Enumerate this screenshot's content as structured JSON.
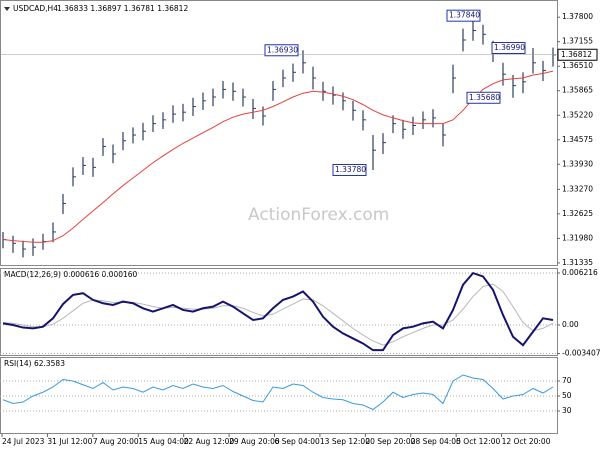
{
  "chart_data": [
    {
      "type": "ohlc",
      "title": "USDCAD,H4",
      "quote": "1.36833 1.36897 1.36781 1.36812",
      "color": "#2f3d5c",
      "high": [
        1.3215,
        1.3205,
        1.3192,
        1.3198,
        1.321,
        1.324,
        1.3315,
        1.3385,
        1.3412,
        1.341,
        1.3462,
        1.3445,
        1.3478,
        1.349,
        1.3502,
        1.3522,
        1.353,
        1.3548,
        1.3552,
        1.3568,
        1.3582,
        1.3592,
        1.3612,
        1.3608,
        1.3592,
        1.3565,
        1.3545,
        1.3612,
        1.3642,
        1.3658,
        1.3693,
        1.365,
        1.361,
        1.3598,
        1.3582,
        1.356,
        1.3535,
        1.347,
        1.3475,
        1.3522,
        1.351,
        1.3518,
        1.3532,
        1.3538,
        1.35,
        1.3655,
        1.375,
        1.3784,
        1.376,
        1.3718,
        1.366,
        1.3628,
        1.3635,
        1.3699,
        1.3665,
        1.37
      ],
      "low": [
        1.3172,
        1.316,
        1.3148,
        1.3152,
        1.3168,
        1.3188,
        1.3262,
        1.3335,
        1.3365,
        1.336,
        1.3415,
        1.3396,
        1.343,
        1.3448,
        1.3456,
        1.3478,
        1.3486,
        1.3502,
        1.3506,
        1.352,
        1.3536,
        1.3546,
        1.3566,
        1.356,
        1.3545,
        1.3512,
        1.3495,
        1.356,
        1.3596,
        1.361,
        1.3632,
        1.359,
        1.356,
        1.355,
        1.3535,
        1.3508,
        1.3482,
        1.3378,
        1.342,
        1.3475,
        1.346,
        1.347,
        1.3486,
        1.349,
        1.344,
        1.358,
        1.369,
        1.3718,
        1.3708,
        1.3662,
        1.36,
        1.3568,
        1.358,
        1.3632,
        1.3612,
        1.365
      ],
      "close": [
        1.3195,
        1.3185,
        1.317,
        1.3175,
        1.319,
        1.3215,
        1.329,
        1.336,
        1.339,
        1.3385,
        1.344,
        1.342,
        1.3455,
        1.347,
        1.348,
        1.35,
        1.351,
        1.3525,
        1.353,
        1.3545,
        1.356,
        1.357,
        1.359,
        1.3585,
        1.357,
        1.354,
        1.352,
        1.359,
        1.362,
        1.3635,
        1.366,
        1.362,
        1.3585,
        1.3575,
        1.356,
        1.3535,
        1.351,
        1.343,
        1.345,
        1.35,
        1.3485,
        1.3495,
        1.351,
        1.3515,
        1.347,
        1.362,
        1.372,
        1.3745,
        1.3735,
        1.369,
        1.363,
        1.36,
        1.361,
        1.366,
        1.364,
        1.3681
      ],
      "series": [
        {
          "color": "#e8413c",
          "values": [
            1.3195,
            1.3192,
            1.319,
            1.3188,
            1.3188,
            1.3192,
            1.3205,
            1.3225,
            1.3248,
            1.327,
            1.3292,
            1.3315,
            1.3337,
            1.3357,
            1.3377,
            1.3397,
            1.3415,
            1.3432,
            1.3448,
            1.3462,
            1.3476,
            1.349,
            1.3505,
            1.3517,
            1.3525,
            1.353,
            1.3535,
            1.3545,
            1.3557,
            1.357,
            1.358,
            1.3585,
            1.3583,
            1.3578,
            1.3572,
            1.3563,
            1.355,
            1.3535,
            1.3523,
            1.3515,
            1.3508,
            1.3502,
            1.35,
            1.35,
            1.35,
            1.351,
            1.3535,
            1.3565,
            1.359,
            1.3605,
            1.3615,
            1.3618,
            1.362,
            1.3628,
            1.3632,
            1.3638
          ]
        }
      ],
      "ylim": [
        1.3128,
        1.382
      ],
      "yticks": [
        {
          "value": 1.378,
          "label": "1.37800"
        },
        {
          "value": 1.37155,
          "label": "1.37155"
        },
        {
          "value": 1.3651,
          "label": "1.36510"
        },
        {
          "value": 1.35865,
          "label": "1.35865"
        },
        {
          "value": 1.3522,
          "label": "1.35220"
        },
        {
          "value": 1.34575,
          "label": "1.34575"
        },
        {
          "value": 1.3393,
          "label": "1.33930"
        },
        {
          "value": 1.3327,
          "label": "1.33270"
        },
        {
          "value": 1.32625,
          "label": "1.32625"
        },
        {
          "value": 1.3198,
          "label": "1.31980"
        },
        {
          "value": 1.31335,
          "label": "1.31335"
        }
      ],
      "last_price": 1.36812,
      "annotations": [
        {
          "value": 1.3784,
          "label": "1.37840"
        },
        {
          "value": 1.3693,
          "label": "1.36930"
        },
        {
          "value": 1.3699,
          "label": "1.36990"
        },
        {
          "value": 1.3568,
          "label": "1.35680"
        },
        {
          "value": 1.3378,
          "label": "1.33780"
        }
      ],
      "watermark": "ActionForex.com",
      "x_labels": [
        "24 Jul 2023",
        "31 Jul 12:00",
        "7 Aug 20:00",
        "15 Aug 04:00",
        "22 Aug 12:00",
        "29 Aug 20:00",
        "6 Sep 04:00",
        "13 Sep 12:00",
        "20 Sep 20:00",
        "28 Sep 04:00",
        "5 Oct 12:00",
        "12 Oct 20:00"
      ]
    },
    {
      "type": "line",
      "title": "MACD(12,26,9) 0.000616 0.000160",
      "series": [
        {
          "color": "#14146e",
          "values": [
            0.0002,
            0.0,
            -0.0003,
            -0.0004,
            -0.0002,
            0.0008,
            0.0025,
            0.0036,
            0.0038,
            0.003,
            0.0026,
            0.0024,
            0.0028,
            0.0026,
            0.002,
            0.0016,
            0.002,
            0.0024,
            0.0018,
            0.0016,
            0.002,
            0.0022,
            0.0028,
            0.0022,
            0.0014,
            0.0006,
            0.0008,
            0.002,
            0.003,
            0.0034,
            0.004,
            0.0028,
            0.001,
            -0.0002,
            -0.001,
            -0.0016,
            -0.0022,
            -0.003,
            -0.003,
            -0.0012,
            -0.0004,
            -0.0002,
            0.0002,
            0.0004,
            -0.0004,
            0.0018,
            0.0048,
            0.0062,
            0.0058,
            0.0042,
            0.0012,
            -0.0014,
            -0.0024,
            -0.0008,
            0.0008,
            0.0006
          ]
        },
        {
          "color": "#b8b8b8",
          "values": [
            0.0003,
            0.0002,
            0.0,
            -0.0002,
            -0.0002,
            0.0001,
            0.0008,
            0.0017,
            0.0026,
            0.003,
            0.0029,
            0.0027,
            0.0027,
            0.0027,
            0.0025,
            0.0022,
            0.002,
            0.0021,
            0.002,
            0.0019,
            0.0019,
            0.002,
            0.0023,
            0.0023,
            0.002,
            0.0015,
            0.0011,
            0.0013,
            0.0019,
            0.0025,
            0.0031,
            0.003,
            0.0023,
            0.0014,
            0.0005,
            -0.0004,
            -0.0012,
            -0.0019,
            -0.0024,
            -0.002,
            -0.0014,
            -0.0009,
            -0.0004,
            0.0,
            0.0,
            0.0006,
            0.0019,
            0.0034,
            0.0046,
            0.0049,
            0.004,
            0.0022,
            0.0003,
            -0.0007,
            -0.0004,
            0.0002
          ]
        }
      ],
      "ylim": [
        -0.00358,
        0.00681
      ],
      "yticks": [
        0.006216,
        {
          "value": 0,
          "label": "0.00"
        },
        -0.003407
      ]
    },
    {
      "type": "line",
      "title": "RSI(14) 62.3583",
      "series": [
        {
          "color": "#3a9ae0",
          "values": [
            45,
            40,
            42,
            50,
            55,
            62,
            72,
            70,
            65,
            60,
            68,
            58,
            62,
            60,
            55,
            62,
            58,
            64,
            60,
            66,
            62,
            60,
            64,
            56,
            50,
            44,
            42,
            62,
            60,
            66,
            64,
            55,
            48,
            46,
            45,
            40,
            38,
            32,
            42,
            55,
            48,
            52,
            54,
            52,
            40,
            70,
            78,
            74,
            72,
            60,
            46,
            50,
            52,
            60,
            54,
            62
          ]
        }
      ],
      "ylim": [
        0,
        100
      ],
      "yticks": [
        70,
        50,
        30
      ]
    }
  ]
}
